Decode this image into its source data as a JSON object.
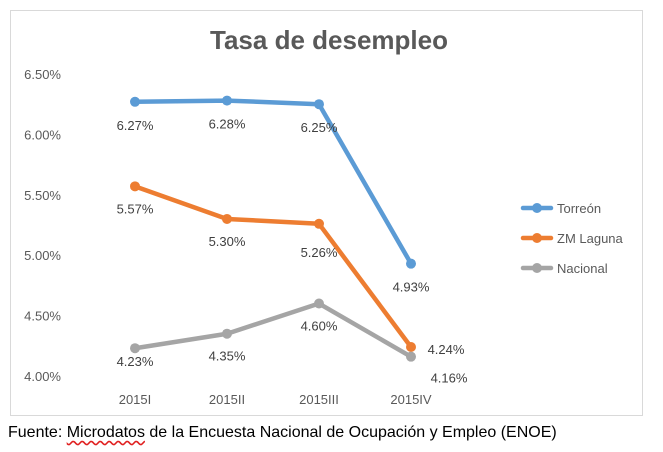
{
  "chart_data": {
    "type": "line",
    "title": "Tasa de desempleo",
    "categories": [
      "2015I",
      "2015II",
      "2015III",
      "2015IV"
    ],
    "ylim": [
      4.0,
      6.5
    ],
    "yticks": [
      "6.50%",
      "6.00%",
      "5.50%",
      "5.00%",
      "4.50%",
      "4.00%"
    ],
    "ytick_values": [
      6.5,
      6.0,
      5.5,
      5.0,
      4.5,
      4.0
    ],
    "legend_position": "right",
    "series": [
      {
        "name": "Torreón",
        "color": "#5b9bd5",
        "values": [
          6.27,
          6.28,
          6.25,
          4.93
        ],
        "labels": [
          "6.27%",
          "6.28%",
          "6.25%",
          "4.93%"
        ]
      },
      {
        "name": "ZM Laguna",
        "color": "#ed7d31",
        "values": [
          5.57,
          5.3,
          5.26,
          4.24
        ],
        "labels": [
          "5.57%",
          "5.30%",
          "5.26%",
          "4.24%"
        ]
      },
      {
        "name": "Nacional",
        "color": "#a5a5a5",
        "values": [
          4.23,
          4.35,
          4.6,
          4.16
        ],
        "labels": [
          "4.23%",
          "4.35%",
          "4.60%",
          "4.16%"
        ]
      }
    ]
  },
  "source": {
    "prefix": "Fuente: ",
    "underlined": "Microdatos",
    "rest": " de la Encuesta Nacional de Ocupación y Empleo (ENOE)"
  }
}
